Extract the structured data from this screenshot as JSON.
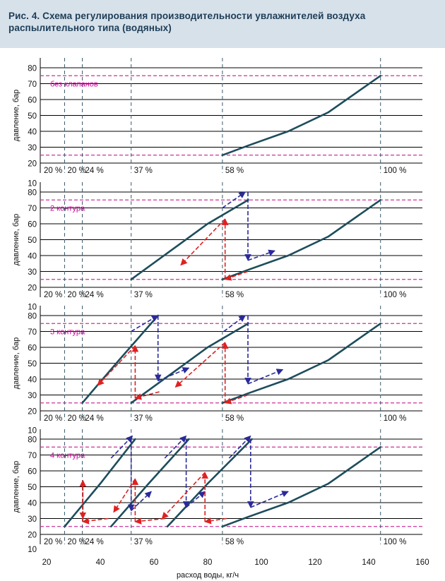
{
  "figure": {
    "title": "Рис. 4. Схема регулирования производительности увлажнителей воздуха распылительного типа (водяных)",
    "colors": {
      "header_bg": "#d7e1ea",
      "header_text": "#1c3d57",
      "curve": "#1d4d5c",
      "limit_line": "#cc3399",
      "label": "#cc0099",
      "up_arrow": "#2a2a9a",
      "down_arrow": "#e02020"
    }
  },
  "chart_data": {
    "type": "line",
    "title": "Рис. 4. Схема регулирования производительности увлажнителей воздуха распылительного типа (водяных)",
    "xlabel": "расход воды, кг/ч",
    "ylabel": "давление, бар",
    "xlim": [
      20,
      160
    ],
    "xticks": [
      20,
      40,
      60,
      80,
      100,
      120,
      140,
      160
    ],
    "ylim": [
      20,
      80
    ],
    "yticks": [
      20,
      30,
      40,
      50,
      60,
      70,
      80
    ],
    "extra_ytick": 10,
    "grid": true,
    "pressure_limits": [
      25,
      75
    ],
    "stage_flows": [
      26.7,
      33.3,
      51.5,
      85.5,
      144.4
    ],
    "stage_percents": [
      "20 %",
      "24 %",
      "37 %",
      "58 %",
      "100 %"
    ],
    "panels": [
      {
        "label": "без клапанов",
        "curves": [
          {
            "x": [
              85.5,
              95,
              110,
              125,
              144.4
            ],
            "y": [
              25,
              31,
              40,
              52,
              75
            ]
          }
        ],
        "arrows": []
      },
      {
        "label": "2 контура",
        "curves": [
          {
            "x": [
              51.5,
              80,
              95.1
            ],
            "y": [
              25,
              60,
              75
            ]
          },
          {
            "x": [
              85.5,
              95,
              110,
              125,
              144.4
            ],
            "y": [
              25,
              31,
              40,
              52,
              75
            ]
          }
        ],
        "arrows": [
          {
            "kind": "up",
            "from": [
              85.5,
              70
            ],
            "to": [
              94,
              80
            ]
          },
          {
            "kind": "up",
            "from": [
              95,
              80
            ],
            "to": [
              95,
              37
            ]
          },
          {
            "kind": "up",
            "from": [
              95,
              37
            ],
            "to": [
              105,
              43
            ]
          },
          {
            "kind": "down",
            "from": [
              95,
              30
            ],
            "to": [
              86.5,
              25
            ]
          },
          {
            "kind": "down",
            "from": [
              86.5,
              25
            ],
            "to": [
              86.5,
              63
            ]
          },
          {
            "kind": "down",
            "from": [
              86.5,
              63
            ],
            "to": [
              70,
              34
            ]
          }
        ]
      },
      {
        "label": "3 контура",
        "curves": [
          {
            "x": [
              33.3,
              47,
              61.5
            ],
            "y": [
              25,
              52,
              80
            ]
          },
          {
            "x": [
              51.5,
              80,
              95.1
            ],
            "y": [
              25,
              60,
              75
            ]
          },
          {
            "x": [
              85.5,
              95,
              110,
              125,
              144.4
            ],
            "y": [
              25,
              31,
              40,
              52,
              75
            ]
          }
        ],
        "arrows": [
          {
            "kind": "up",
            "from": [
              51.5,
              70
            ],
            "to": [
              61.5,
              80
            ]
          },
          {
            "kind": "up",
            "from": [
              61.5,
              80
            ],
            "to": [
              61.5,
              39
            ]
          },
          {
            "kind": "up",
            "from": [
              61.5,
              39
            ],
            "to": [
              73,
              47
            ]
          },
          {
            "kind": "down",
            "from": [
              62,
              32
            ],
            "to": [
              53,
              28
            ]
          },
          {
            "kind": "down",
            "from": [
              53,
              28
            ],
            "to": [
              53,
              61
            ]
          },
          {
            "kind": "down",
            "from": [
              53,
              61
            ],
            "to": [
              39,
              36
            ]
          },
          {
            "kind": "up",
            "from": [
              86,
              70
            ],
            "to": [
              94,
              80
            ]
          },
          {
            "kind": "up",
            "from": [
              95,
              80
            ],
            "to": [
              95,
              37
            ]
          },
          {
            "kind": "up",
            "from": [
              95,
              37
            ],
            "to": [
              108,
              46
            ]
          },
          {
            "kind": "down",
            "from": [
              95,
              30
            ],
            "to": [
              86.5,
              25
            ]
          },
          {
            "kind": "down",
            "from": [
              86.5,
              25
            ],
            "to": [
              86.5,
              63
            ]
          },
          {
            "kind": "down",
            "from": [
              86.5,
              63
            ],
            "to": [
              68,
              35
            ]
          }
        ]
      },
      {
        "label": "4 контура",
        "curves": [
          {
            "x": [
              26.7,
              40,
              53
            ],
            "y": [
              25,
              52,
              80
            ]
          },
          {
            "x": [
              44,
              58,
              73
            ],
            "y": [
              25,
              52,
              80
            ]
          },
          {
            "x": [
              65,
              80,
              96.5
            ],
            "y": [
              25,
              52,
              80
            ]
          },
          {
            "x": [
              85.5,
              95,
              110,
              125,
              144.4
            ],
            "y": [
              25,
              31,
              40,
              52,
              75
            ]
          }
        ],
        "arrows": [
          {
            "kind": "up",
            "from": [
              44,
              68
            ],
            "to": [
              52,
              82
            ]
          },
          {
            "kind": "up",
            "from": [
              51.5,
              80
            ],
            "to": [
              51.5,
              35
            ]
          },
          {
            "kind": "up",
            "from": [
              51.5,
              35
            ],
            "to": [
              59,
              47
            ]
          },
          {
            "kind": "down",
            "from": [
              43,
              30
            ],
            "to": [
              33.5,
              28
            ]
          },
          {
            "kind": "down",
            "from": [
              33.5,
              28
            ],
            "to": [
              33.5,
              54
            ]
          },
          {
            "kind": "down",
            "from": [
              33.5,
              54
            ],
            "to": [
              33.5,
              30
            ]
          },
          {
            "kind": "up",
            "from": [
              64,
              68
            ],
            "to": [
              72,
              82
            ]
          },
          {
            "kind": "up",
            "from": [
              72,
              80
            ],
            "to": [
              72,
              37
            ]
          },
          {
            "kind": "up",
            "from": [
              72,
              37
            ],
            "to": [
              79,
              47
            ]
          },
          {
            "kind": "down",
            "from": [
              64,
              30
            ],
            "to": [
              53,
              28
            ]
          },
          {
            "kind": "down",
            "from": [
              53,
              28
            ],
            "to": [
              53,
              55
            ]
          },
          {
            "kind": "down",
            "from": [
              53,
              55
            ],
            "to": [
              45,
              34
            ]
          },
          {
            "kind": "up",
            "from": [
              88,
              68
            ],
            "to": [
              96,
              82
            ]
          },
          {
            "kind": "up",
            "from": [
              96,
              80
            ],
            "to": [
              96,
              37
            ]
          },
          {
            "kind": "up",
            "from": [
              96,
              37
            ],
            "to": [
              110,
              47
            ]
          },
          {
            "kind": "down",
            "from": [
              87,
              30
            ],
            "to": [
              79,
              28
            ]
          },
          {
            "kind": "down",
            "from": [
              79,
              28
            ],
            "to": [
              79,
              59
            ]
          },
          {
            "kind": "down",
            "from": [
              79,
              59
            ],
            "to": [
              63,
              30
            ]
          }
        ]
      }
    ]
  }
}
